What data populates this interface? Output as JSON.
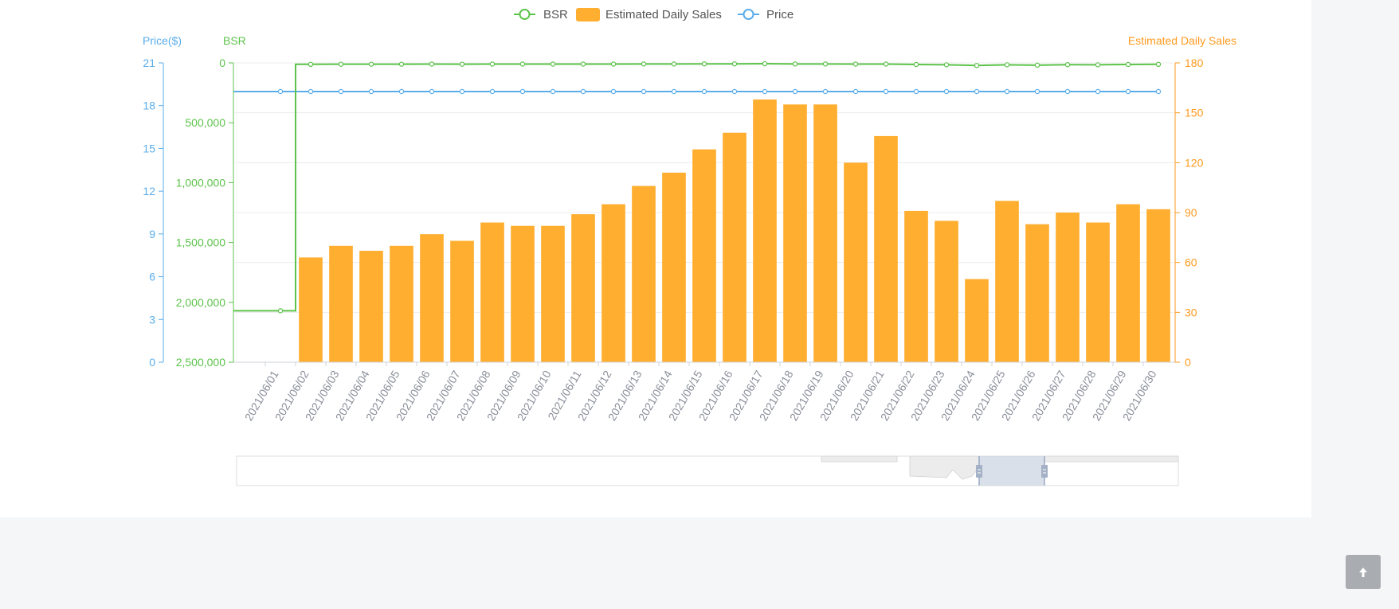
{
  "legend": {
    "bsr": "BSR",
    "sales": "Estimated Daily Sales",
    "price": "Price"
  },
  "colors": {
    "bsr": "#5dc34b",
    "sales": "#ffae2f",
    "price": "#5aadea",
    "axis_text": "#8a8e99"
  },
  "chart_data": {
    "type": "bar",
    "categories": [
      "2021/06/01",
      "2021/06/02",
      "2021/06/03",
      "2021/06/04",
      "2021/06/05",
      "2021/06/06",
      "2021/06/07",
      "2021/06/08",
      "2021/06/09",
      "2021/06/10",
      "2021/06/11",
      "2021/06/12",
      "2021/06/13",
      "2021/06/14",
      "2021/06/15",
      "2021/06/16",
      "2021/06/17",
      "2021/06/18",
      "2021/06/19",
      "2021/06/20",
      "2021/06/21",
      "2021/06/22",
      "2021/06/23",
      "2021/06/24",
      "2021/06/25",
      "2021/06/26",
      "2021/06/27",
      "2021/06/28",
      "2021/06/29",
      "2021/06/30"
    ],
    "series": [
      {
        "name": "Estimated Daily Sales",
        "type": "bar",
        "axis": "right",
        "values": [
          null,
          63,
          70,
          67,
          70,
          77,
          73,
          84,
          82,
          82,
          89,
          95,
          106,
          114,
          128,
          138,
          158,
          155,
          155,
          120,
          136,
          91,
          85,
          50,
          97,
          83,
          90,
          84,
          95,
          92
        ]
      },
      {
        "name": "BSR",
        "type": "line-step",
        "axis": "left-inner",
        "values": [
          2070000,
          12000,
          11000,
          11000,
          11000,
          10000,
          11000,
          10000,
          10000,
          10000,
          10000,
          10000,
          9000,
          9000,
          8000,
          8000,
          7000,
          9000,
          9000,
          10000,
          10000,
          13000,
          16000,
          22000,
          16000,
          19000,
          15000,
          16000,
          13000,
          12000
        ]
      },
      {
        "name": "Price",
        "type": "line",
        "axis": "left-outer",
        "values": [
          18.99,
          18.99,
          18.99,
          18.99,
          18.99,
          18.99,
          18.99,
          18.99,
          18.99,
          18.99,
          18.99,
          18.99,
          18.99,
          18.99,
          18.99,
          18.99,
          18.99,
          18.99,
          18.99,
          18.99,
          18.99,
          18.99,
          18.99,
          18.99,
          18.99,
          18.99,
          18.99,
          18.99,
          18.99,
          18.99
        ]
      }
    ],
    "axes": {
      "price": {
        "label": "Price($)",
        "min": 0,
        "max": 21,
        "ticks": [
          "21",
          "18",
          "15",
          "12",
          "9",
          "6",
          "3",
          "0"
        ]
      },
      "bsr": {
        "label": "BSR",
        "min": 0,
        "max": 2500000,
        "inverted": true,
        "ticks": [
          "0",
          "500,000",
          "1,000,000",
          "1,500,000",
          "2,000,000",
          "2,500,000"
        ]
      },
      "sales": {
        "label": "Estimated Daily Sales",
        "min": 0,
        "max": 180,
        "ticks": [
          "180",
          "150",
          "120",
          "90",
          "60",
          "30",
          "0"
        ]
      }
    },
    "grid": true,
    "legend_position": "top-center"
  },
  "back_to_top_icon": "arrow-up-icon"
}
